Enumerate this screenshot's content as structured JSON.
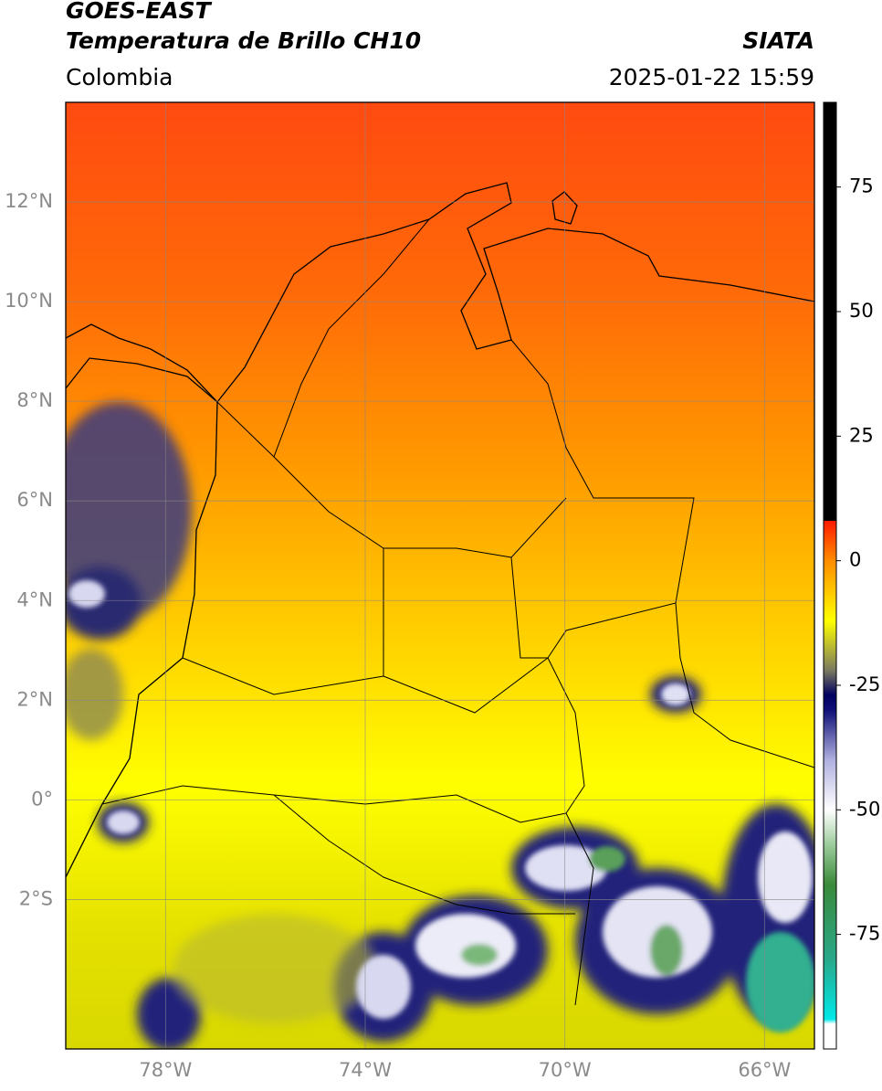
{
  "header": {
    "title": "GOES-EAST",
    "subtitle": "Temperatura de Brillo CH10",
    "region": "Colombia",
    "source": "SIATA",
    "datetime": "2025-01-22 15:59"
  },
  "map": {
    "lonlim": [
      -80,
      -65
    ],
    "latlim": [
      -5,
      14
    ],
    "grid": true,
    "lon_ticks": [
      {
        "value": -78,
        "label": "78°W"
      },
      {
        "value": -74,
        "label": "74°W"
      },
      {
        "value": -70,
        "label": "70°W"
      },
      {
        "value": -66,
        "label": "66°W"
      }
    ],
    "lat_ticks": [
      {
        "value": 12,
        "label": "12°N"
      },
      {
        "value": 10,
        "label": "10°N"
      },
      {
        "value": 8,
        "label": "8°N"
      },
      {
        "value": 6,
        "label": "6°N"
      },
      {
        "value": 4,
        "label": "4°N"
      },
      {
        "value": 2,
        "label": "2°N"
      },
      {
        "value": 0,
        "label": "0°"
      },
      {
        "value": -2,
        "label": "2°S"
      }
    ]
  },
  "colorbar": {
    "lim": [
      -98,
      92
    ],
    "ticks": [
      75,
      50,
      25,
      0,
      -25,
      -50,
      -75
    ],
    "colormap": [
      {
        "value": -98,
        "color": "#ffffff"
      },
      {
        "value": -93,
        "color": "#ffffff"
      },
      {
        "value": -92,
        "color": "#00e8e8"
      },
      {
        "value": -80,
        "color": "#2aa88a"
      },
      {
        "value": -65,
        "color": "#3a8a3a"
      },
      {
        "value": -57,
        "color": "#9ccc9c"
      },
      {
        "value": -50,
        "color": "#ffffff"
      },
      {
        "value": -40,
        "color": "#b0b0e0"
      },
      {
        "value": -30,
        "color": "#101078"
      },
      {
        "value": -27,
        "color": "#000060"
      },
      {
        "value": -22,
        "color": "#7a7a60"
      },
      {
        "value": -12,
        "color": "#ffff00"
      },
      {
        "value": 0,
        "color": "#ff8c00"
      },
      {
        "value": 8,
        "color": "#ff1a00"
      },
      {
        "value": 8,
        "color": "#000000"
      },
      {
        "value": 92,
        "color": "#000000"
      }
    ]
  }
}
